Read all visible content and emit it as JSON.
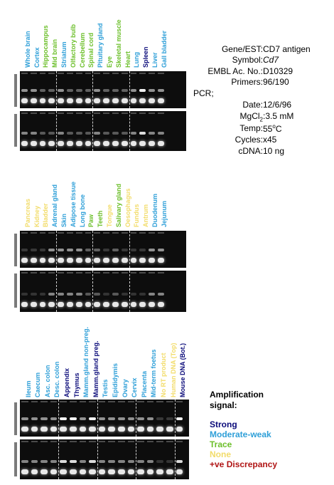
{
  "panels": [
    {
      "lanes": [
        {
          "label": "Whole brain",
          "status": "moderate"
        },
        {
          "label": "Cortex",
          "status": "moderate"
        },
        {
          "label": "Hippocampus",
          "status": "trace"
        },
        {
          "label": "Mid brain",
          "status": "trace"
        },
        {
          "label": "Striatum",
          "status": "moderate"
        },
        {
          "label": "Olfactory bulb",
          "status": "trace"
        },
        {
          "label": "Cerebellum",
          "status": "trace"
        },
        {
          "label": "Spinal cord",
          "status": "trace"
        },
        {
          "label": "Pituitary gland",
          "status": "moderate"
        },
        {
          "label": "Eye",
          "status": "trace"
        },
        {
          "label": "Skeletal muscle",
          "status": "trace"
        },
        {
          "label": "Heart",
          "status": "trace"
        },
        {
          "label": "Lung",
          "status": "moderate"
        },
        {
          "label": "Spleen",
          "status": "strong"
        },
        {
          "label": "Liver",
          "status": "moderate"
        },
        {
          "label": "Gall bladder",
          "status": "moderate"
        }
      ]
    },
    {
      "lanes": [
        {
          "label": "Pancreas",
          "status": "none"
        },
        {
          "label": "Kidney",
          "status": "none"
        },
        {
          "label": "Bladder",
          "status": "none"
        },
        {
          "label": "Adrenal gland",
          "status": "moderate"
        },
        {
          "label": "Skin",
          "status": "moderate"
        },
        {
          "label": "Adipose tissue",
          "status": "moderate"
        },
        {
          "label": "Long bone",
          "status": "moderate"
        },
        {
          "label": "Paw",
          "status": "trace"
        },
        {
          "label": "Teeth",
          "status": "trace"
        },
        {
          "label": "Tongue",
          "status": "none"
        },
        {
          "label": "Salivary gland",
          "status": "trace"
        },
        {
          "label": "Oesophagus",
          "status": "none"
        },
        {
          "label": "Fundus",
          "status": "none"
        },
        {
          "label": "Antrum",
          "status": "none"
        },
        {
          "label": "Duodenum",
          "status": "moderate"
        },
        {
          "label": "Jejunum",
          "status": "moderate"
        }
      ]
    },
    {
      "lanes": [
        {
          "label": "Ileum",
          "status": "moderate"
        },
        {
          "label": "Caecum",
          "status": "moderate"
        },
        {
          "label": "Asc. colon",
          "status": "moderate"
        },
        {
          "label": "Desc. colon",
          "status": "moderate"
        },
        {
          "label": "Appendix",
          "status": "strong"
        },
        {
          "label": "Thymus",
          "status": "strong"
        },
        {
          "label": "Mamm.gland non-preg.",
          "status": "moderate"
        },
        {
          "label": "Mamm.gland preg.",
          "status": "strong"
        },
        {
          "label": "Testis",
          "status": "moderate"
        },
        {
          "label": "Epididymis",
          "status": "moderate"
        },
        {
          "label": "Ovary",
          "status": "moderate"
        },
        {
          "label": "Cervix",
          "status": "moderate"
        },
        {
          "label": "Placenta",
          "status": "moderate"
        },
        {
          "label": "Mid-term foetus",
          "status": "moderate"
        },
        {
          "label": "No RT product",
          "status": "none"
        },
        {
          "label": "Human DNA (Top)",
          "status": "none"
        },
        {
          "label": "Mouse DNA (Bot.)",
          "status": "strong"
        }
      ]
    }
  ],
  "info": {
    "gene_key": "Gene/EST:",
    "gene_val": "CD7 antigen",
    "symbol_key": "Symbol:",
    "symbol_val": "Cd7",
    "embl_key": "EMBL Ac. No.:",
    "embl_val": "D10329",
    "primers_key": "Primers:",
    "primers_val": "96/190",
    "pcr_label": "PCR;",
    "date_key": "Date:",
    "date_val": "12/6/96",
    "mgcl_key": "MgCl",
    "mgcl_sub": "2",
    "mgcl_val": ":3.5 mM",
    "temp_key": "Temp:",
    "temp_val": "55",
    "temp_unit": "C",
    "temp_deg": "o",
    "cycles_key": "Cycles:",
    "cycles_val": "x45",
    "cdna_key": "cDNA:",
    "cdna_val": "10 ng"
  },
  "legend": {
    "title_line1": "Amplification",
    "title_line2": "signal:",
    "strong": "Strong",
    "moderate": "Moderate-weak",
    "trace": "Trace",
    "none": "None",
    "discrepancy": "+ve Discrepancy"
  },
  "colors": {
    "strong": "#0b0b7a",
    "moderate": "#2e9fd8",
    "trace": "#6cbf2a",
    "none": "#f2dc6a",
    "discrepancy": "#b01414",
    "gel_background": "#0d0d0d"
  }
}
